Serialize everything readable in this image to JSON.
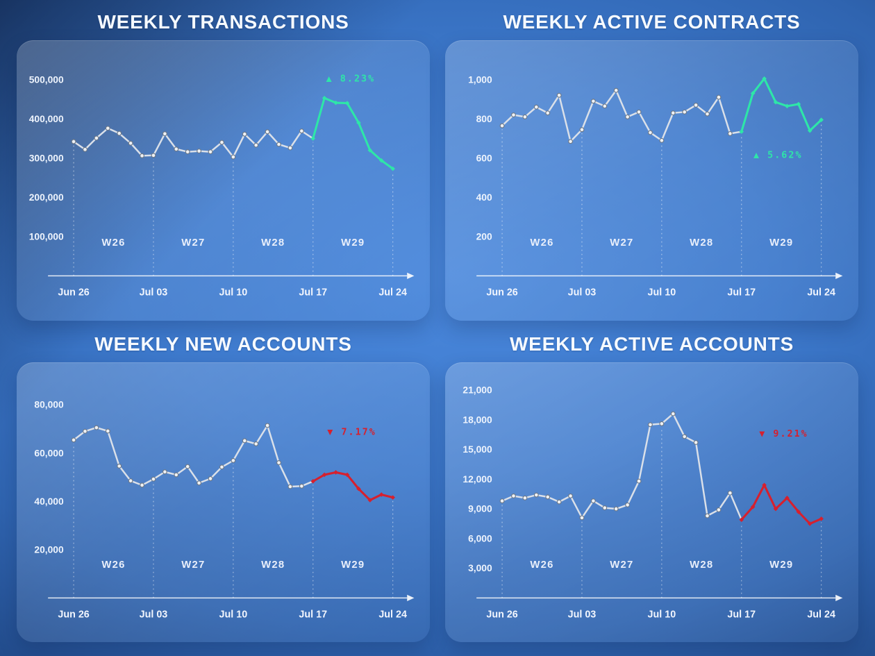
{
  "colors": {
    "green": "#2ee6a8",
    "red": "#d6202e",
    "line": "#dae0e9",
    "marker_fill": "#eef1f5",
    "marker_stroke": "#6d7886",
    "axis": "#ffffff",
    "label_text": "#f2f6fe"
  },
  "chart_data": [
    {
      "type": "line",
      "title": "WEEKLY TRANSACTIONS",
      "accent": "green",
      "badge": {
        "arrow": "▲",
        "pct": "8.23%",
        "day": 24.3,
        "value": 495000
      },
      "x_ticks": [
        "Jun 26",
        "Jul 03",
        "Jul 10",
        "Jul 17",
        "Jul 24"
      ],
      "week_labels": [
        "W26",
        "W27",
        "W28",
        "W29"
      ],
      "y_ticks": [
        {
          "label": "100,000",
          "value": 100000
        },
        {
          "label": "200,000",
          "value": 200000
        },
        {
          "label": "300,000",
          "value": 300000
        },
        {
          "label": "400,000",
          "value": 400000
        },
        {
          "label": "500,000",
          "value": 500000
        }
      ],
      "ymin": 0,
      "ymax_render": 560000,
      "highlight_start_index": 21,
      "values": [
        342000,
        322000,
        351000,
        376000,
        363000,
        338000,
        306000,
        307000,
        362000,
        323000,
        316000,
        318000,
        316000,
        340000,
        303000,
        361000,
        333000,
        367000,
        335000,
        326000,
        369000,
        350000,
        453000,
        441000,
        440000,
        390000,
        320000,
        294000,
        273000
      ]
    },
    {
      "type": "line",
      "title": "WEEKLY ACTIVE CONTRACTS",
      "accent": "green",
      "badge": {
        "arrow": "▲",
        "pct": "5.62%",
        "day": 24.2,
        "value": 600
      },
      "x_ticks": [
        "Jun 26",
        "Jul 03",
        "Jul 10",
        "Jul 17",
        "Jul 24"
      ],
      "week_labels": [
        "W26",
        "W27",
        "W28",
        "W29"
      ],
      "y_ticks": [
        {
          "label": "200",
          "value": 200
        },
        {
          "label": "400",
          "value": 400
        },
        {
          "label": "600",
          "value": 600
        },
        {
          "label": "800",
          "value": 800
        },
        {
          "label": "1,000",
          "value": 1000
        }
      ],
      "ymin": 0,
      "ymax_render": 1120,
      "highlight_start_index": 21,
      "values": [
        765,
        820,
        810,
        860,
        830,
        920,
        685,
        745,
        890,
        865,
        945,
        810,
        835,
        730,
        690,
        830,
        835,
        870,
        825,
        910,
        725,
        735,
        930,
        1005,
        885,
        865,
        875,
        740,
        795
      ]
    },
    {
      "type": "line",
      "title": "WEEKLY NEW ACCOUNTS",
      "accent": "red",
      "badge": {
        "arrow": "▼",
        "pct": "7.17%",
        "day": 24.4,
        "value": 67500
      },
      "x_ticks": [
        "Jun 26",
        "Jul 03",
        "Jul 10",
        "Jul 17",
        "Jul 24"
      ],
      "week_labels": [
        "W26",
        "W27",
        "W28",
        "W29"
      ],
      "y_ticks": [
        {
          "label": "20,000",
          "value": 20000
        },
        {
          "label": "40,000",
          "value": 40000
        },
        {
          "label": "60,000",
          "value": 60000
        },
        {
          "label": "80,000",
          "value": 80000
        }
      ],
      "ymin": 0,
      "ymax_render": 91000,
      "highlight_start_index": 21,
      "values": [
        65400,
        69000,
        70500,
        69100,
        54600,
        48500,
        46700,
        49200,
        52200,
        51000,
        54400,
        47600,
        49400,
        54200,
        56900,
        65100,
        63800,
        71400,
        56000,
        46100,
        46300,
        48300,
        51000,
        52000,
        51000,
        45200,
        40500,
        42800,
        41600
      ]
    },
    {
      "type": "line",
      "title": "WEEKLY ACTIVE ACCOUNTS",
      "accent": "red",
      "badge": {
        "arrow": "▼",
        "pct": "9.21%",
        "day": 24.7,
        "value": 16300
      },
      "x_ticks": [
        "Jun 26",
        "Jul 03",
        "Jul 10",
        "Jul 17",
        "Jul 24"
      ],
      "week_labels": [
        "W26",
        "W27",
        "W28",
        "W29"
      ],
      "y_ticks": [
        {
          "label": "3,000",
          "value": 3000
        },
        {
          "label": "6,000",
          "value": 6000
        },
        {
          "label": "9,000",
          "value": 9000
        },
        {
          "label": "12,000",
          "value": 12000
        },
        {
          "label": "15,000",
          "value": 15000
        },
        {
          "label": "18,000",
          "value": 18000
        },
        {
          "label": "21,000",
          "value": 21000
        }
      ],
      "ymin": 0,
      "ymax_render": 22200,
      "highlight_start_index": 21,
      "values": [
        9800,
        10300,
        10100,
        10400,
        10200,
        9700,
        10300,
        8100,
        9800,
        9100,
        9000,
        9400,
        11800,
        17500,
        17600,
        18600,
        16300,
        15700,
        8300,
        8900,
        10600,
        7900,
        9200,
        11400,
        9000,
        10100,
        8700,
        7500,
        8000
      ]
    }
  ]
}
